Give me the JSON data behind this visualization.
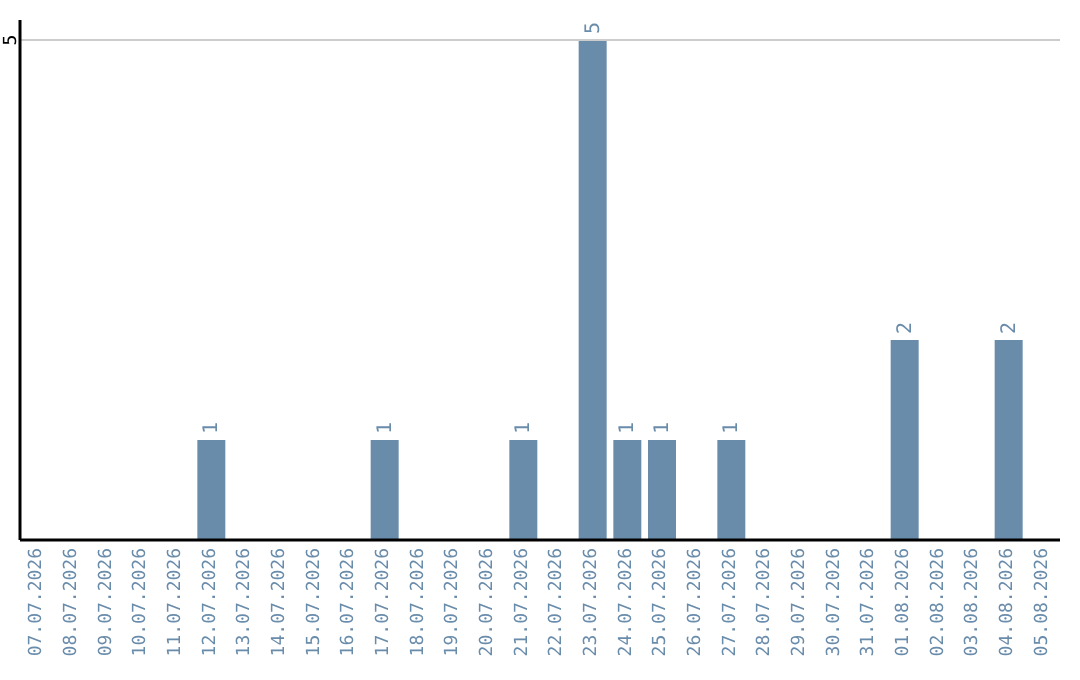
{
  "chart_data": {
    "type": "bar",
    "categories": [
      "07.07.2026",
      "08.07.2026",
      "09.07.2026",
      "10.07.2026",
      "11.07.2026",
      "12.07.2026",
      "13.07.2026",
      "14.07.2026",
      "15.07.2026",
      "16.07.2026",
      "17.07.2026",
      "18.07.2026",
      "19.07.2026",
      "20.07.2026",
      "21.07.2026",
      "22.07.2026",
      "23.07.2026",
      "24.07.2026",
      "25.07.2026",
      "26.07.2026",
      "27.07.2026",
      "28.07.2026",
      "29.07.2026",
      "30.07.2026",
      "31.07.2026",
      "01.08.2026",
      "02.08.2026",
      "03.08.2026",
      "04.08.2026",
      "05.08.2026"
    ],
    "values": [
      0,
      0,
      0,
      0,
      0,
      1,
      0,
      0,
      0,
      0,
      1,
      0,
      0,
      0,
      1,
      0,
      5,
      1,
      1,
      0,
      1,
      0,
      0,
      0,
      0,
      2,
      0,
      0,
      2,
      0
    ],
    "value_labels": [
      null,
      null,
      null,
      null,
      null,
      "1",
      null,
      null,
      null,
      null,
      "1",
      null,
      null,
      null,
      "1",
      null,
      "5",
      "1",
      "1",
      null,
      "1",
      null,
      null,
      null,
      null,
      "2",
      null,
      null,
      "2",
      null
    ],
    "color": "#6a8cab",
    "ylim": [
      0,
      5.2
    ],
    "yticks": [
      5
    ],
    "grid": "y"
  }
}
